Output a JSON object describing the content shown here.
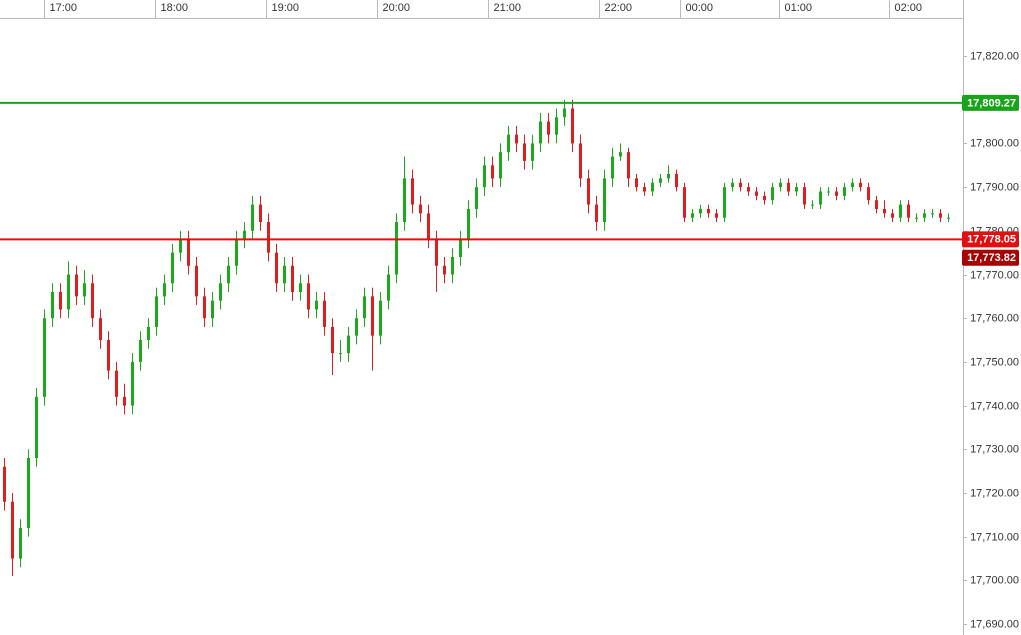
{
  "chart_data": {
    "type": "candlestick",
    "up_color": "#1ea81e",
    "down_color": "#dd1f1f",
    "xlim": [
      0,
      120.4
    ],
    "xticks": [
      {
        "value": 5.5,
        "label": "17:00"
      },
      {
        "value": 19.4,
        "label": "18:00"
      },
      {
        "value": 33.25,
        "label": "19:00"
      },
      {
        "value": 47.1,
        "label": "20:00"
      },
      {
        "value": 61,
        "label": "21:00"
      },
      {
        "value": 74.9,
        "label": "22:00"
      },
      {
        "value": 85,
        "label": "00:00"
      },
      {
        "value": 97.4,
        "label": "01:00"
      },
      {
        "value": 111.1,
        "label": "02:00"
      }
    ],
    "ylim": [
      17687.5,
      17828.7
    ],
    "yticks": [
      {
        "value": 17690,
        "label": "17,690.00"
      },
      {
        "value": 17700,
        "label": "17,700.00"
      },
      {
        "value": 17710,
        "label": "17,710.00"
      },
      {
        "value": 17720,
        "label": "17,720.00"
      },
      {
        "value": 17730,
        "label": "17,730.00"
      },
      {
        "value": 17740,
        "label": "17,740.00"
      },
      {
        "value": 17750,
        "label": "17,750.00"
      },
      {
        "value": 17760,
        "label": "17,760.00"
      },
      {
        "value": 17770,
        "label": "17,770.00"
      },
      {
        "value": 17780,
        "label": "17,780.00"
      },
      {
        "value": 17790,
        "label": "17,790.00"
      },
      {
        "value": 17800,
        "label": "17,800.00"
      },
      {
        "value": 17810,
        "label": "17,810.00"
      },
      {
        "value": 17820,
        "label": "17,820.00"
      }
    ],
    "levels": [
      {
        "value": 17809.27,
        "label": "17,809.27",
        "color": "#19a319",
        "line": true
      },
      {
        "value": 17778.05,
        "label": "17,778.05",
        "color": "#e01010",
        "line": true
      },
      {
        "value": 17773.82,
        "label": "17,773.82",
        "color": "#a80000",
        "line": false
      }
    ],
    "candles": [
      [
        17726,
        17728,
        17716,
        17718
      ],
      [
        17718,
        17720,
        17701,
        17705
      ],
      [
        17705,
        17714,
        17703,
        17712
      ],
      [
        17712,
        17730,
        17710,
        17728
      ],
      [
        17728,
        17744,
        17726,
        17742
      ],
      [
        17742,
        17762,
        17740,
        17760
      ],
      [
        17760,
        17768,
        17758,
        17766
      ],
      [
        17766,
        17768,
        17760,
        17762
      ],
      [
        17762,
        17773,
        17760,
        17770
      ],
      [
        17770,
        17772,
        17763,
        17765
      ],
      [
        17765,
        17771,
        17763,
        17768
      ],
      [
        17768,
        17770,
        17758,
        17760
      ],
      [
        17760,
        17762,
        17753,
        17755
      ],
      [
        17755,
        17757,
        17746,
        17748
      ],
      [
        17748,
        17750,
        17740,
        17742
      ],
      [
        17742,
        17745,
        17738,
        17740
      ],
      [
        17740,
        17752,
        17738,
        17750
      ],
      [
        17750,
        17757,
        17748,
        17755
      ],
      [
        17755,
        17760,
        17753,
        17758
      ],
      [
        17758,
        17767,
        17756,
        17765
      ],
      [
        17765,
        17770,
        17763,
        17768
      ],
      [
        17768,
        17777,
        17766,
        17775
      ],
      [
        17775,
        17780,
        17773,
        17778
      ],
      [
        17778,
        17780,
        17770,
        17772
      ],
      [
        17772,
        17774,
        17763,
        17765
      ],
      [
        17765,
        17767,
        17758,
        17760
      ],
      [
        17760,
        17766,
        17758,
        17764
      ],
      [
        17764,
        17770,
        17762,
        17768
      ],
      [
        17768,
        17774,
        17766,
        17772
      ],
      [
        17772,
        17780,
        17770,
        17778
      ],
      [
        17778,
        17782,
        17776,
        17780
      ],
      [
        17780,
        17788,
        17778,
        17786
      ],
      [
        17786,
        17788,
        17780,
        17782
      ],
      [
        17782,
        17784,
        17773,
        17775
      ],
      [
        17775,
        17777,
        17766,
        17768
      ],
      [
        17768,
        17774,
        17766,
        17772
      ],
      [
        17772,
        17774,
        17764,
        17766
      ],
      [
        17766,
        17770,
        17764,
        17768
      ],
      [
        17768,
        17770,
        17760,
        17762
      ],
      [
        17762,
        17766,
        17760,
        17764
      ],
      [
        17764,
        17766,
        17756,
        17758
      ],
      [
        17758,
        17760,
        17747,
        17752
      ],
      [
        17752,
        17755,
        17750,
        17752
      ],
      [
        17752,
        17758,
        17750,
        17756
      ],
      [
        17756,
        17762,
        17754,
        17760
      ],
      [
        17760,
        17767,
        17758,
        17765
      ],
      [
        17765,
        17767,
        17748,
        17756
      ],
      [
        17756,
        17766,
        17754,
        17764
      ],
      [
        17764,
        17772,
        17762,
        17770
      ],
      [
        17770,
        17784,
        17768,
        17782
      ],
      [
        17782,
        17797,
        17780,
        17792
      ],
      [
        17792,
        17794,
        17784,
        17786
      ],
      [
        17786,
        17788,
        17782,
        17784
      ],
      [
        17784,
        17786,
        17776,
        17778
      ],
      [
        17778,
        17780,
        17766,
        17772
      ],
      [
        17772,
        17774,
        17768,
        17770
      ],
      [
        17770,
        17776,
        17768,
        17774
      ],
      [
        17774,
        17780,
        17772,
        17778
      ],
      [
        17778,
        17787,
        17776,
        17785
      ],
      [
        17785,
        17792,
        17783,
        17790
      ],
      [
        17790,
        17797,
        17788,
        17795
      ],
      [
        17795,
        17797,
        17790,
        17792
      ],
      [
        17792,
        17800,
        17790,
        17798
      ],
      [
        17798,
        17804,
        17796,
        17802
      ],
      [
        17802,
        17804,
        17798,
        17800
      ],
      [
        17800,
        17802,
        17794,
        17796
      ],
      [
        17796,
        17802,
        17794,
        17800
      ],
      [
        17800,
        17807,
        17798,
        17805
      ],
      [
        17805,
        17807,
        17800,
        17802
      ],
      [
        17802,
        17808,
        17800,
        17806
      ],
      [
        17806,
        17810,
        17804,
        17808
      ],
      [
        17808,
        17810,
        17798,
        17800
      ],
      [
        17800,
        17802,
        17790,
        17792
      ],
      [
        17792,
        17794,
        17784,
        17786
      ],
      [
        17786,
        17788,
        17780,
        17782
      ],
      [
        17782,
        17794,
        17780,
        17792
      ],
      [
        17792,
        17799,
        17790,
        17797
      ],
      [
        17797,
        17800,
        17796,
        17798
      ],
      [
        17798,
        17799,
        17790,
        17792
      ],
      [
        17792,
        17793,
        17789,
        17790
      ],
      [
        17790,
        17791,
        17788,
        17789
      ],
      [
        17789,
        17792,
        17788,
        17791
      ],
      [
        17791,
        17793,
        17790,
        17792
      ],
      [
        17792,
        17795,
        17791,
        17793
      ],
      [
        17793,
        17794,
        17789,
        17790
      ],
      [
        17790,
        17791,
        17782,
        17783
      ],
      [
        17783,
        17785,
        17782,
        17784
      ],
      [
        17784,
        17786,
        17783,
        17785
      ],
      [
        17785,
        17786,
        17783,
        17784
      ],
      [
        17784,
        17785,
        17782,
        17783
      ],
      [
        17783,
        17791,
        17782,
        17790
      ],
      [
        17790,
        17792,
        17789,
        17791
      ],
      [
        17791,
        17792,
        17789,
        17790
      ],
      [
        17790,
        17791,
        17788,
        17789
      ],
      [
        17789,
        17790,
        17787,
        17788
      ],
      [
        17788,
        17789,
        17786,
        17787
      ],
      [
        17787,
        17791,
        17786,
        17790
      ],
      [
        17790,
        17792,
        17789,
        17791
      ],
      [
        17791,
        17792,
        17788,
        17789
      ],
      [
        17789,
        17791,
        17788,
        17790
      ],
      [
        17790,
        17791,
        17785,
        17786
      ],
      [
        17786,
        17787,
        17785,
        17786
      ],
      [
        17786,
        17790,
        17785,
        17789
      ],
      [
        17789,
        17790,
        17788,
        17789
      ],
      [
        17789,
        17790,
        17787,
        17788
      ],
      [
        17788,
        17791,
        17787,
        17790
      ],
      [
        17790,
        17792,
        17789,
        17791
      ],
      [
        17791,
        17792,
        17789,
        17790
      ],
      [
        17790,
        17791,
        17786,
        17787
      ],
      [
        17787,
        17788,
        17784,
        17785
      ],
      [
        17785,
        17787,
        17783,
        17784
      ],
      [
        17784,
        17785,
        17782,
        17783
      ],
      [
        17783,
        17787,
        17782,
        17786
      ],
      [
        17786,
        17787,
        17782,
        17783
      ],
      [
        17783,
        17784,
        17782,
        17783
      ],
      [
        17783,
        17785,
        17782,
        17784
      ],
      [
        17784,
        17785,
        17783,
        17784
      ],
      [
        17784,
        17785,
        17782,
        17783
      ],
      [
        17783,
        17784,
        17782,
        17783
      ]
    ]
  }
}
